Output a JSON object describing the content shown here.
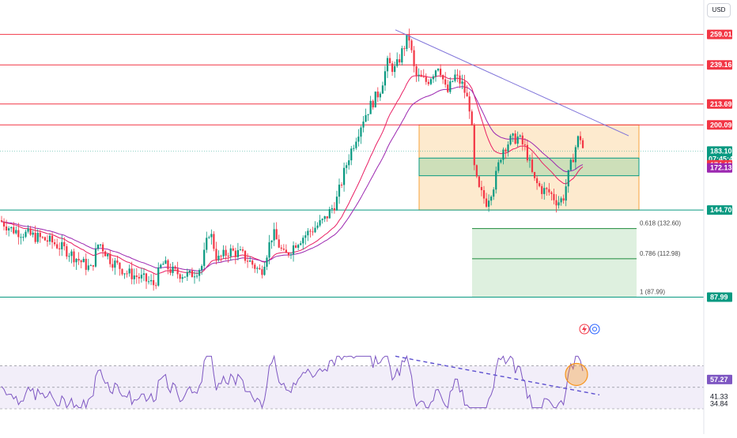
{
  "currency_label": "USD",
  "icons": [
    "lightning-icon",
    "alert-clock-icon"
  ],
  "chart_data": [
    {
      "type": "candlestick",
      "ylim": [
        80,
        266
      ],
      "ohlc": [],
      "moving_averages": [
        {
          "color": "#e91e63",
          "values": []
        },
        {
          "color": "#9c27b0",
          "values": []
        }
      ],
      "horizontal_levels": [
        {
          "value": 259.01,
          "label": "259.01",
          "color": "#f23645"
        },
        {
          "value": 239.16,
          "label": "239.16",
          "color": "#f23645"
        },
        {
          "value": 213.69,
          "label": "213.69",
          "color": "#f23645"
        },
        {
          "value": 200.09,
          "label": "200.09",
          "color": "#f23645"
        },
        {
          "value": 144.7,
          "label": "144.70",
          "color": "#089981"
        },
        {
          "value": 87.99,
          "label": "87.99",
          "color": "#089981"
        }
      ],
      "price_tags": [
        {
          "value": 183.1,
          "label": "183.10",
          "sub": "07:45:47",
          "color": "#089981"
        },
        {
          "value": 174.15,
          "label": "174.15",
          "color": "#f23645"
        },
        {
          "value": 172.13,
          "label": "172.13",
          "color": "#9c27b0"
        }
      ],
      "fibonacci": [
        {
          "ratio": "0.618",
          "value": 132.6,
          "label": "0.618 (132.60)"
        },
        {
          "ratio": "0.786",
          "value": 112.98,
          "label": "0.786 (112.98)"
        },
        {
          "ratio": "1",
          "value": 87.99,
          "label": "1 (87.99)"
        }
      ],
      "range_box": {
        "top": 200.09,
        "bottom": 144.7,
        "color": "#f7a23b"
      },
      "support_zone": {
        "top": 178.5,
        "bottom": 167.0,
        "color": "#089981"
      },
      "trendline": {
        "from": 262,
        "to": 193,
        "color": "#7e72d9"
      }
    },
    {
      "type": "line",
      "name": "RSI",
      "ylim": [
        30,
        80
      ],
      "values": [],
      "current": {
        "value": 57.27,
        "label": "57.27",
        "color": "#7e57c2"
      },
      "axis_labels": [
        {
          "value": 41.33,
          "label": "41.33"
        },
        {
          "value": 34.84,
          "label": "34.84"
        }
      ],
      "band_upper": 70,
      "band_mid": 50,
      "band_lower": 30,
      "trendline": {
        "from": 79,
        "to": 43,
        "color": "#5c4fcf"
      },
      "highlight_color": "#f7931a"
    }
  ]
}
